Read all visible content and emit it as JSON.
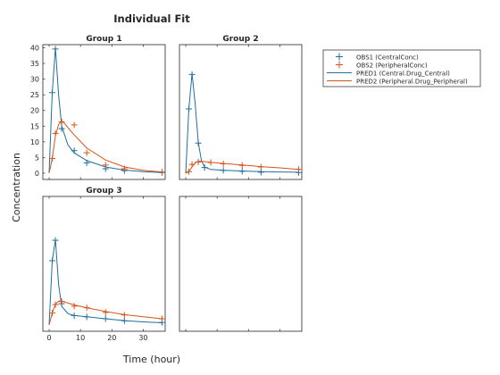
{
  "chart_data": {
    "type": "line",
    "title": "Individual Fit",
    "xlabel": "Time (hour)",
    "ylabel": "Concentration",
    "xlim": [
      -2,
      37
    ],
    "ylim": [
      -2,
      41
    ],
    "xticks": [
      "0",
      "10",
      "20",
      "30"
    ],
    "yticks": [
      "0",
      "5",
      "10",
      "15",
      "20",
      "25",
      "30",
      "35",
      "40"
    ],
    "grid": false,
    "legend_position": "top-right",
    "legend": [
      "OBS1 (CentralConc)",
      "OBS2 (PeripheralConc)",
      "PRED1 (Central.Drug_Central)",
      "PRED2 (Peripheral.Drug_Peripheral)"
    ],
    "colors": {
      "obs1": "#1f6f9f",
      "obs2": "#d95319",
      "pred1": "#1f6f9f",
      "pred2": "#d95319"
    },
    "panels": [
      {
        "title": "Group 1",
        "obs1": {
          "x": [
            1,
            2,
            4,
            8,
            12,
            18,
            24,
            36
          ],
          "y": [
            25.7,
            39.6,
            14.2,
            7.2,
            3.3,
            1.4,
            0.8,
            0.2
          ]
        },
        "obs2": {
          "x": [
            1,
            2,
            4,
            8,
            12,
            18,
            24,
            36
          ],
          "y": [
            4.7,
            12.7,
            16.4,
            15.4,
            6.5,
            2.6,
            1.4,
            0.4
          ]
        },
        "pred1": {
          "x": [
            0,
            1,
            2,
            3,
            4,
            6,
            8,
            12,
            18,
            24,
            30,
            36
          ],
          "y": [
            0,
            25.7,
            40.0,
            25.0,
            15.0,
            9.0,
            6.5,
            4.0,
            2.0,
            1.0,
            0.5,
            0.2
          ]
        },
        "pred2": {
          "x": [
            0,
            1,
            2,
            3,
            4,
            5,
            6,
            8,
            12,
            18,
            24,
            30,
            36
          ],
          "y": [
            0,
            4.7,
            12.0,
            15.5,
            16.6,
            15.8,
            14.5,
            12.2,
            8.0,
            4.2,
            2.0,
            0.9,
            0.4
          ]
        }
      },
      {
        "title": "Group 2",
        "obs1": {
          "x": [
            1,
            2,
            4,
            6,
            12,
            18,
            24,
            36
          ],
          "y": [
            20.5,
            31.5,
            9.6,
            1.8,
            0.9,
            0.6,
            0.3,
            0.2
          ]
        },
        "obs2": {
          "x": [
            1,
            2,
            4,
            8,
            12,
            18,
            24,
            36
          ],
          "y": [
            0.5,
            2.8,
            3.6,
            3.4,
            3.0,
            2.5,
            2.0,
            1.2
          ]
        },
        "pred1": {
          "x": [
            0,
            1,
            2,
            3,
            4,
            5,
            6,
            8,
            12,
            18,
            24,
            30,
            36
          ],
          "y": [
            0,
            20.5,
            31.8,
            22.0,
            9.8,
            4.0,
            2.0,
            1.2,
            0.9,
            0.7,
            0.5,
            0.4,
            0.3
          ]
        },
        "pred2": {
          "x": [
            0,
            1,
            2,
            3,
            4,
            5,
            6,
            8,
            12,
            18,
            24,
            30,
            36
          ],
          "y": [
            0,
            0.5,
            2.0,
            3.3,
            3.8,
            3.8,
            3.7,
            3.5,
            3.1,
            2.6,
            2.1,
            1.7,
            1.2
          ]
        }
      },
      {
        "title": "Group 3",
        "obs1": {
          "x": [
            1,
            2,
            4,
            8,
            12,
            18,
            24,
            36
          ],
          "y": [
            20.5,
            27.0,
            6.8,
            3.0,
            2.6,
            2.0,
            1.3,
            0.8
          ]
        },
        "obs2": {
          "x": [
            1,
            2,
            4,
            8,
            12,
            18,
            24,
            36
          ],
          "y": [
            3.8,
            6.5,
            7.5,
            6.0,
            5.5,
            4.0,
            3.2,
            2.0
          ]
        },
        "pred1": {
          "x": [
            0,
            1,
            2,
            3,
            4,
            6,
            8,
            12,
            18,
            24,
            30,
            36
          ],
          "y": [
            0,
            20.5,
            27.2,
            13.0,
            6.0,
            3.6,
            3.0,
            2.6,
            2.0,
            1.4,
            1.0,
            0.7
          ]
        },
        "pred2": {
          "x": [
            0,
            1,
            2,
            3,
            4,
            5,
            6,
            8,
            12,
            18,
            24,
            30,
            36
          ],
          "y": [
            0,
            3.8,
            6.6,
            7.6,
            7.6,
            7.3,
            7.0,
            6.4,
            5.5,
            4.3,
            3.3,
            2.6,
            2.0
          ]
        }
      },
      {
        "title": "",
        "obs1": {
          "x": [],
          "y": []
        },
        "obs2": {
          "x": [],
          "y": []
        },
        "pred1": {
          "x": [],
          "y": []
        },
        "pred2": {
          "x": [],
          "y": []
        }
      }
    ]
  }
}
